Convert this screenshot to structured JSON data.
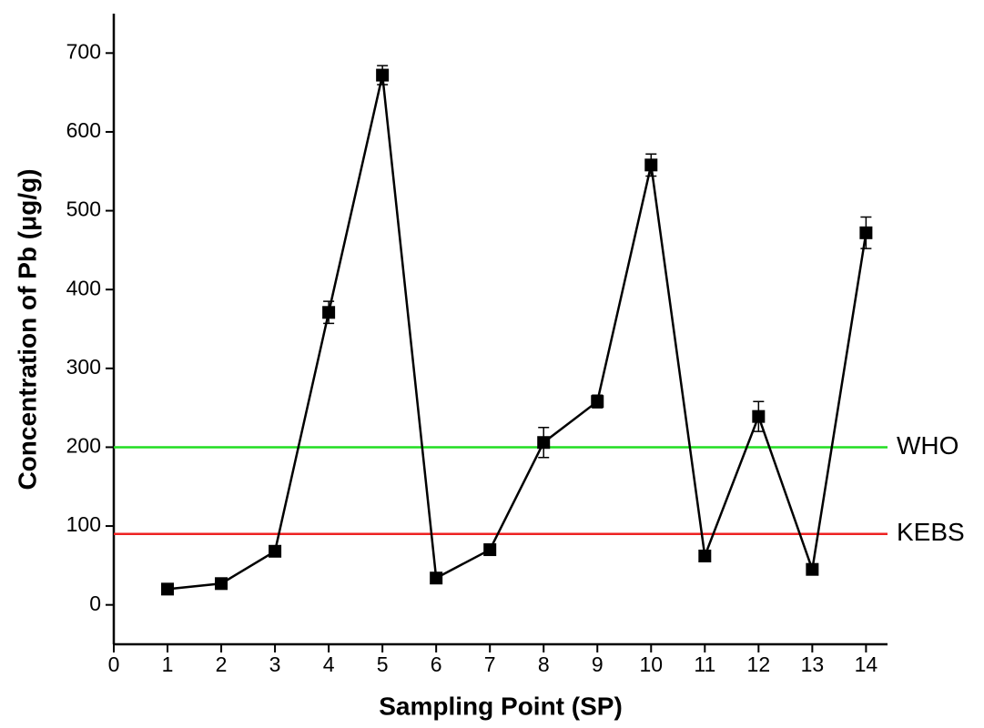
{
  "chart_data": {
    "type": "line",
    "xlabel": "Sampling Point (SP)",
    "ylabel": "Concentration of Pb (μg/g)",
    "x": [
      1,
      2,
      3,
      4,
      5,
      6,
      7,
      8,
      9,
      10,
      11,
      12,
      13,
      14
    ],
    "series": [
      {
        "color": "#000000",
        "values": [
          20,
          27,
          68,
          371,
          672,
          34,
          70,
          206,
          258,
          558,
          62,
          239,
          45,
          472
        ],
        "errors": [
          3,
          3,
          4,
          14,
          12,
          3,
          4,
          19,
          8,
          14,
          4,
          19,
          3,
          20
        ]
      }
    ],
    "reference_lines": [
      {
        "name": "WHO",
        "value": 200,
        "color": "#22dd22"
      },
      {
        "name": "KEBS",
        "value": 90,
        "color": "#ee2222"
      }
    ],
    "xlim": [
      0,
      14.4
    ],
    "xticks": [
      0,
      1,
      2,
      3,
      4,
      5,
      6,
      7,
      8,
      9,
      10,
      11,
      12,
      13,
      14
    ],
    "ylim": [
      -50,
      750
    ],
    "yticks": [
      0,
      100,
      200,
      300,
      400,
      500,
      600,
      700
    ]
  }
}
